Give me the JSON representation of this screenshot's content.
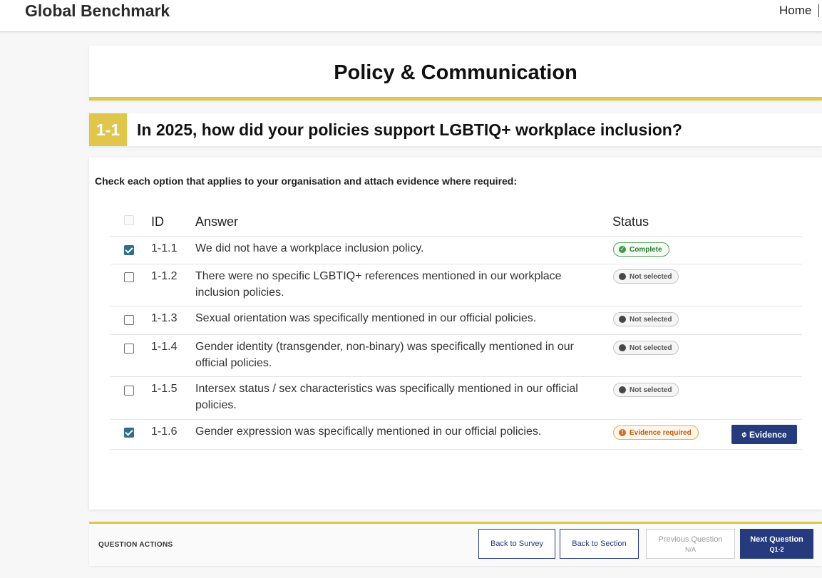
{
  "header": {
    "brand": "Global Benchmark",
    "nav": {
      "home": "Home"
    }
  },
  "section": {
    "title": "Policy & Communication"
  },
  "question": {
    "number": "1-1",
    "text": "In 2025, how did your policies support LGBTIQ+ workplace inclusion?",
    "instruction": "Check each option that applies to your organisation and attach evidence where required:"
  },
  "table": {
    "columns": {
      "id": "ID",
      "answer": "Answer",
      "status": "Status"
    },
    "rows": [
      {
        "checked": true,
        "id": "1-1.1",
        "answer": "We did not have a workplace inclusion policy.",
        "status": "Complete",
        "status_type": "complete",
        "status_icon": "check-circle-icon"
      },
      {
        "checked": false,
        "id": "1-1.2",
        "answer": "There were no specific LGBTIQ+ references mentioned in our workplace inclusion policies.",
        "status": "Not selected",
        "status_type": "not-selected",
        "status_icon": "dot-icon"
      },
      {
        "checked": false,
        "id": "1-1.3",
        "answer": "Sexual orientation was specifically mentioned in our official policies.",
        "status": "Not selected",
        "status_type": "not-selected",
        "status_icon": "dot-icon"
      },
      {
        "checked": false,
        "id": "1-1.4",
        "answer": "Gender identity (transgender, non-binary) was specifically mentioned in our official policies.",
        "status": "Not selected",
        "status_type": "not-selected",
        "status_icon": "dot-icon"
      },
      {
        "checked": false,
        "id": "1-1.5",
        "answer": "Intersex status / sex characteristics was specifically mentioned in our official policies.",
        "status": "Not selected",
        "status_type": "not-selected",
        "status_icon": "dot-icon"
      },
      {
        "checked": true,
        "id": "1-1.6",
        "answer": "Gender expression was specifically mentioned in our official policies.",
        "status": "Evidence required",
        "status_type": "evidence-required",
        "status_icon": "exclamation-circle-icon",
        "action": {
          "label": "Evidence",
          "icon": "paperclip-icon"
        }
      }
    ]
  },
  "actions": {
    "label": "QUESTION ACTIONS",
    "back_to_survey": "Back to Survey",
    "back_to_section": "Back to Section",
    "previous": {
      "label": "Previous Question",
      "sub": "N/A"
    },
    "next": {
      "label": "Next Question",
      "sub": "Q1-2"
    }
  },
  "colors": {
    "accent_yellow": "#e0c64a",
    "primary_navy": "#263b7e",
    "checkbox_blue": "#2e6d8c",
    "complete_green": "#3f9a46",
    "evidence_orange": "#d9692a"
  }
}
